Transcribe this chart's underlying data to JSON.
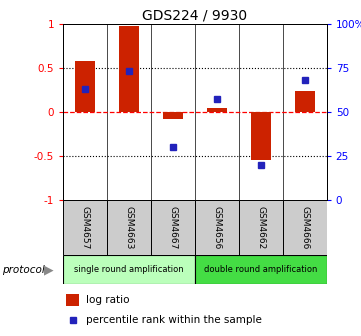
{
  "title": "GDS224 / 9930",
  "samples": [
    "GSM4657",
    "GSM4663",
    "GSM4667",
    "GSM4656",
    "GSM4662",
    "GSM4666"
  ],
  "log_ratio": [
    0.58,
    0.97,
    -0.08,
    0.04,
    -0.55,
    0.23
  ],
  "percentile_rank_pct": [
    63,
    73,
    30,
    57,
    20,
    68
  ],
  "bar_color": "#cc2200",
  "dot_color": "#2222bb",
  "single_color": "#bbffbb",
  "double_color": "#44dd44",
  "ylim_left": [
    -1,
    1
  ],
  "yticks_left": [
    -1,
    -0.5,
    0,
    0.5,
    1
  ],
  "ytick_labels_left": [
    "-1",
    "-0.5",
    "0",
    "0.5",
    "1"
  ],
  "ytick_labels_right": [
    "0",
    "25",
    "50",
    "75",
    "100%"
  ],
  "legend_bar_label": "log ratio",
  "legend_dot_label": "percentile rank within the sample",
  "protocol_label": "protocol",
  "single_label": "single round amplification",
  "double_label": "double round amplification",
  "bar_width": 0.45
}
